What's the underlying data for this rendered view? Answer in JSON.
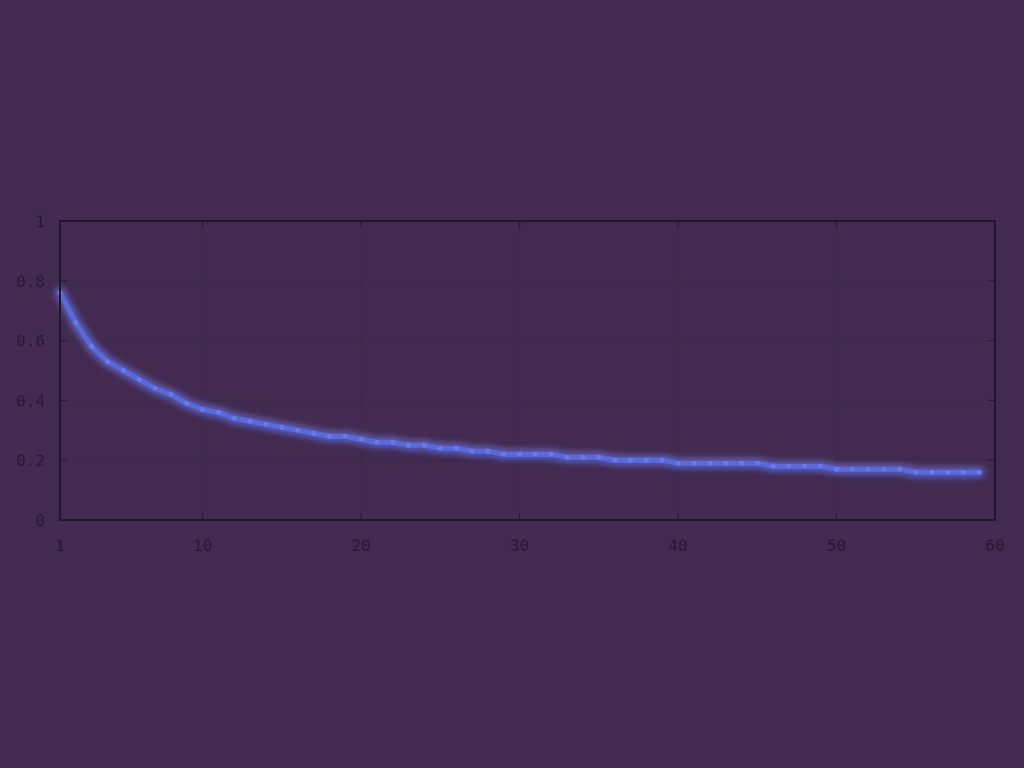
{
  "colors": {
    "background": "#432a50",
    "axis": "#21172d",
    "tick_text": "#241a31",
    "grid": "#35273f",
    "line": "#5a6be0",
    "line_glow": "#6b7df5"
  },
  "chart_data": {
    "type": "line",
    "title": "",
    "xlabel": "",
    "ylabel": "",
    "xlim": [
      1,
      60
    ],
    "ylim": [
      0,
      1
    ],
    "grid": true,
    "legend": "none",
    "xticks": [
      1,
      10,
      20,
      30,
      40,
      50,
      60
    ],
    "xtick_labels": [
      "1",
      "10",
      "20",
      "30",
      "40",
      "50",
      "60"
    ],
    "yticks": [
      0,
      0.2,
      0.4,
      0.6,
      0.8,
      1
    ],
    "ytick_labels": [
      "0",
      "0.2",
      "0.4",
      "0.6",
      "0.8",
      "1"
    ],
    "series": [
      {
        "x": [
          1,
          2,
          3,
          4,
          5,
          6,
          7,
          8,
          9,
          10,
          11,
          12,
          13,
          14,
          15,
          16,
          17,
          18,
          19,
          20,
          21,
          22,
          23,
          24,
          25,
          26,
          27,
          28,
          29,
          30,
          31,
          32,
          33,
          34,
          35,
          36,
          37,
          38,
          39,
          40,
          41,
          42,
          43,
          44,
          45,
          46,
          47,
          48,
          49,
          50,
          51,
          52,
          53,
          54,
          55,
          56,
          57,
          58,
          59
        ],
        "y": [
          0.76,
          0.66,
          0.58,
          0.53,
          0.5,
          0.47,
          0.44,
          0.42,
          0.39,
          0.37,
          0.36,
          0.34,
          0.33,
          0.32,
          0.31,
          0.3,
          0.29,
          0.28,
          0.28,
          0.27,
          0.26,
          0.26,
          0.25,
          0.25,
          0.24,
          0.24,
          0.23,
          0.23,
          0.22,
          0.22,
          0.22,
          0.22,
          0.21,
          0.21,
          0.21,
          0.2,
          0.2,
          0.2,
          0.2,
          0.19,
          0.19,
          0.19,
          0.19,
          0.19,
          0.19,
          0.18,
          0.18,
          0.18,
          0.18,
          0.17,
          0.17,
          0.17,
          0.17,
          0.17,
          0.16,
          0.16,
          0.16,
          0.16,
          0.16
        ]
      }
    ]
  }
}
